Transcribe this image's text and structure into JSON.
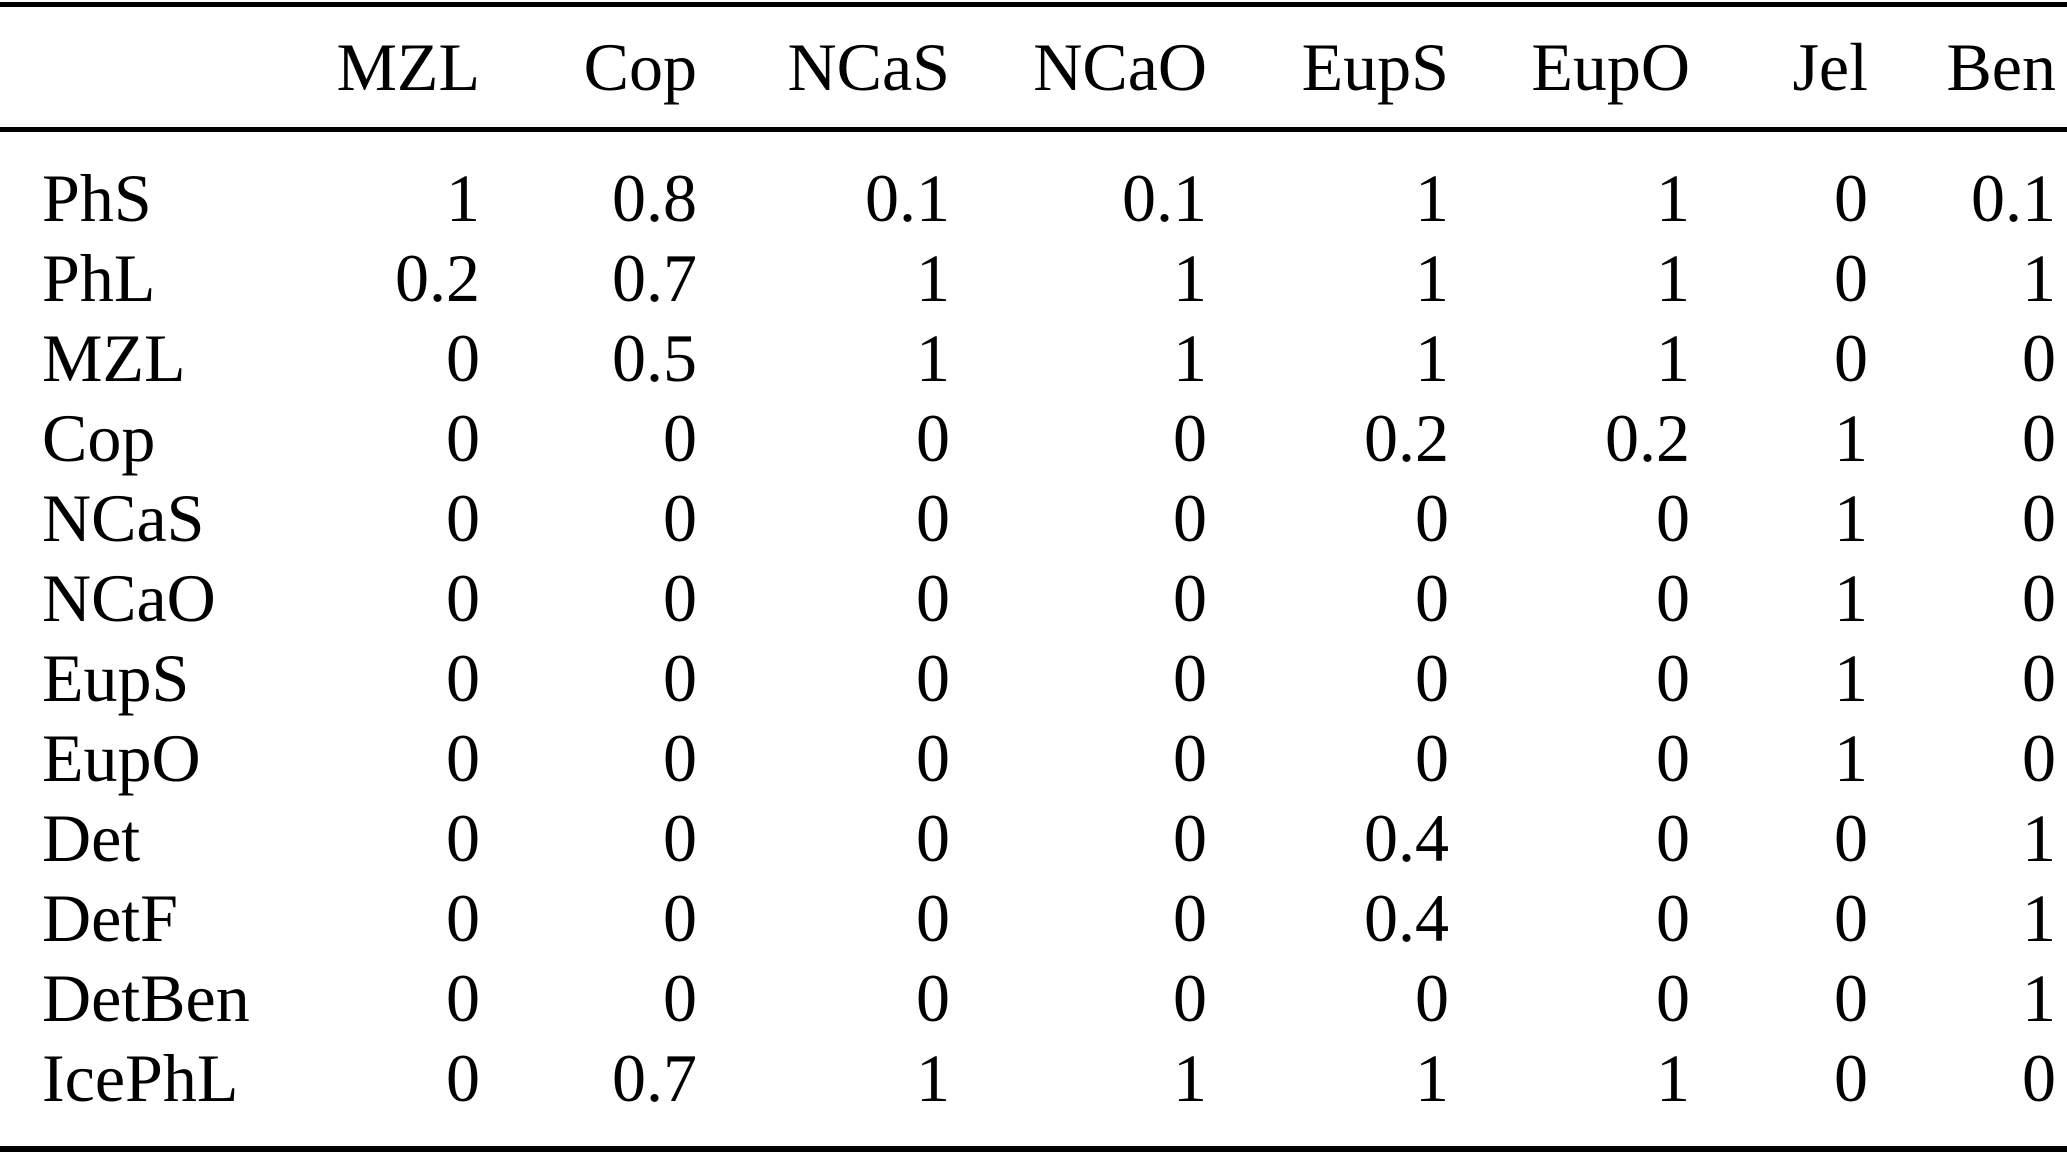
{
  "page": {
    "background_color": "#ffffff",
    "text_color": "#000000",
    "rule_color": "#000000"
  },
  "table": {
    "corner_label": "",
    "columns": [
      "MZL",
      "Cop",
      "NCaS",
      "NCaO",
      "EupS",
      "EupO",
      "Jel",
      "Ben"
    ],
    "rows": [
      {
        "label": "PhS",
        "values": [
          "1",
          "0.8",
          "0.1",
          "0.1",
          "1",
          "1",
          "0",
          "0.1"
        ]
      },
      {
        "label": "PhL",
        "values": [
          "0.2",
          "0.7",
          "1",
          "1",
          "1",
          "1",
          "0",
          "1"
        ]
      },
      {
        "label": "MZL",
        "values": [
          "0",
          "0.5",
          "1",
          "1",
          "1",
          "1",
          "0",
          "0"
        ]
      },
      {
        "label": "Cop",
        "values": [
          "0",
          "0",
          "0",
          "0",
          "0.2",
          "0.2",
          "1",
          "0"
        ]
      },
      {
        "label": "NCaS",
        "values": [
          "0",
          "0",
          "0",
          "0",
          "0",
          "0",
          "1",
          "0"
        ]
      },
      {
        "label": "NCaO",
        "values": [
          "0",
          "0",
          "0",
          "0",
          "0",
          "0",
          "1",
          "0"
        ]
      },
      {
        "label": "EupS",
        "values": [
          "0",
          "0",
          "0",
          "0",
          "0",
          "0",
          "1",
          "0"
        ]
      },
      {
        "label": "EupO",
        "values": [
          "0",
          "0",
          "0",
          "0",
          "0",
          "0",
          "1",
          "0"
        ]
      },
      {
        "label": "Det",
        "values": [
          "0",
          "0",
          "0",
          "0",
          "0.4",
          "0",
          "0",
          "1"
        ]
      },
      {
        "label": "DetF",
        "values": [
          "0",
          "0",
          "0",
          "0",
          "0.4",
          "0",
          "0",
          "1"
        ]
      },
      {
        "label": "DetBen",
        "values": [
          "0",
          "0",
          "0",
          "0",
          "0",
          "0",
          "0",
          "1"
        ]
      },
      {
        "label": "IcePhL",
        "values": [
          "0",
          "0.7",
          "1",
          "1",
          "1",
          "1",
          "0",
          "0"
        ]
      }
    ]
  }
}
